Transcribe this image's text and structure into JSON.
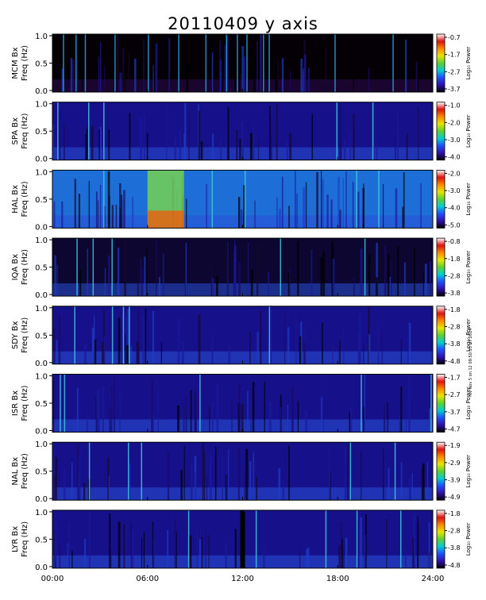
{
  "title": "20110409  y axis",
  "stamp_text": "rev Nov 5 on 12 09:50:15 UT 2014",
  "x_ticks": [
    "00:00",
    "06:00",
    "12:00",
    "18:00",
    "24:00"
  ],
  "y_ticks": [
    "1.0",
    "0.5",
    "0.0"
  ],
  "colorbar_label": "Log₁₀ Power",
  "colormap": [
    "#ffffff",
    "#e01010",
    "#ff8800",
    "#e6e600",
    "#60d030",
    "#00d0d0",
    "#2050ff",
    "#3010b0",
    "#000000"
  ],
  "chart_data": {
    "type": "heatmap",
    "title": "20110409  y axis",
    "x_axis": {
      "unit": "UT hours",
      "range": [
        0,
        24
      ],
      "tick_labels": [
        "00:00",
        "06:00",
        "12:00",
        "18:00",
        "24:00"
      ]
    },
    "y_axis": {
      "range": [
        0.0,
        1.0
      ],
      "tick_labels": [
        "0.0",
        "0.5",
        "1.0"
      ]
    },
    "panels": [
      {
        "station": "MCM",
        "label_line1": "MCM Bx",
        "label_line2": "Freq (Hz)",
        "cbar_ticks": [
          "-0.7",
          "-1.7",
          "-2.7",
          "-3.7"
        ],
        "cbar_range": [
          -3.7,
          -0.7
        ]
      },
      {
        "station": "SPA",
        "label_line1": "SPA Bx",
        "label_line2": "Freq (Hz)",
        "cbar_ticks": [
          "-1.0",
          "-2.0",
          "-3.0",
          "-4.0"
        ],
        "cbar_range": [
          -4.0,
          -1.0
        ]
      },
      {
        "station": "HAL",
        "label_line1": "HAL Bx",
        "label_line2": "Freq (Hz)",
        "cbar_ticks": [
          "-2.0",
          "-3.0",
          "-4.0",
          "-5.0"
        ],
        "cbar_range": [
          -5.0,
          -2.0
        ]
      },
      {
        "station": "IQA",
        "label_line1": "IQA Bx",
        "label_line2": "Freq (Hz)",
        "cbar_ticks": [
          "-0.8",
          "-1.8",
          "-2.8",
          "-3.8"
        ],
        "cbar_range": [
          -3.8,
          -0.8
        ]
      },
      {
        "station": "SDY",
        "label_line1": "SDY Bx",
        "label_line2": "Freq (Hz)",
        "cbar_ticks": [
          "-1.8",
          "-2.8",
          "-3.8",
          "-4.8"
        ],
        "cbar_range": [
          -4.8,
          -1.8
        ]
      },
      {
        "station": "ISR",
        "label_line1": "ISR Bx",
        "label_line2": "Freq (Hz)",
        "cbar_ticks": [
          "-1.7",
          "-2.7",
          "-3.7",
          "-4.7"
        ],
        "cbar_range": [
          -4.7,
          -1.7
        ]
      },
      {
        "station": "NAL",
        "label_line1": "NAL Bx",
        "label_line2": "Freq (Hz)",
        "cbar_ticks": [
          "-1.9",
          "-2.9",
          "-3.9",
          "-4.9"
        ],
        "cbar_range": [
          -4.9,
          -1.9
        ]
      },
      {
        "station": "LYR",
        "label_line1": "LYR Bx",
        "label_line2": "Freq (Hz)",
        "cbar_ticks": [
          "-1.8",
          "-2.8",
          "-3.8",
          "-4.8"
        ],
        "cbar_range": [
          -4.8,
          -1.8
        ]
      }
    ]
  }
}
